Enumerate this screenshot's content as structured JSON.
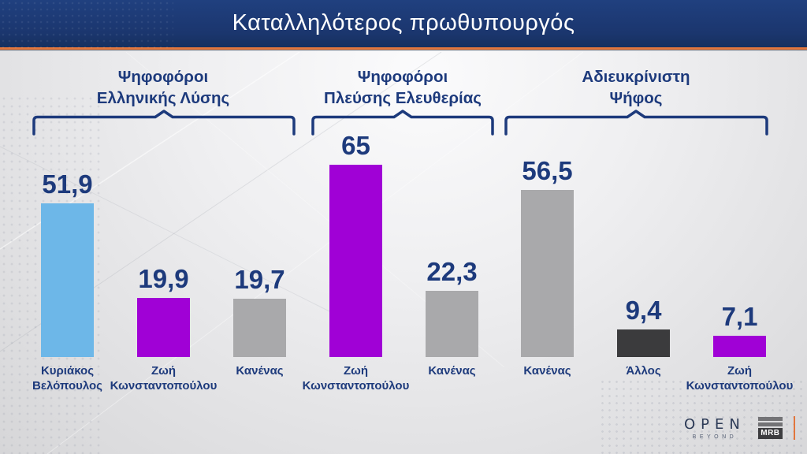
{
  "header": {
    "title": "Καταλληλότερος πρωθυπουργός"
  },
  "colors": {
    "header_bg": "#1b366e",
    "accent_orange": "#e2763c",
    "text_navy": "#1d3a7c",
    "bar_blue": "#6db7e8",
    "bar_purple": "#a001d6",
    "bar_gray": "#a9a9ab",
    "bar_dark": "#3b3b3d"
  },
  "chart_data": {
    "type": "bar",
    "title": "Καταλληλότερος πρωθυπουργός",
    "unit": "percent",
    "ylim": [
      0,
      70
    ],
    "grid": false,
    "legend": "none",
    "groups": [
      {
        "title_line1": "Ψηφοφόροι",
        "title_line2": "Ελληνικής Λύσης",
        "bars": [
          {
            "label_line1": "Κυριάκος",
            "label_line2": "Βελόπουλος",
            "value": 51.9,
            "display": "51,9",
            "color": "blue"
          },
          {
            "label_line1": "Ζωή",
            "label_line2": "Κωνσταντοπούλου",
            "value": 19.9,
            "display": "19,9",
            "color": "purple"
          },
          {
            "label_line1": "Κανένας",
            "label_line2": "",
            "value": 19.7,
            "display": "19,7",
            "color": "gray"
          }
        ]
      },
      {
        "title_line1": "Ψηφοφόροι",
        "title_line2": "Πλεύσης Ελευθερίας",
        "bars": [
          {
            "label_line1": "Ζωή",
            "label_line2": "Κωνσταντοπούλου",
            "value": 65,
            "display": "65",
            "color": "purple"
          },
          {
            "label_line1": "Κανένας",
            "label_line2": "",
            "value": 22.3,
            "display": "22,3",
            "color": "gray"
          }
        ]
      },
      {
        "title_line1": "Αδιευκρίνιστη",
        "title_line2": "Ψήφος",
        "bars": [
          {
            "label_line1": "Κανένας",
            "label_line2": "",
            "value": 56.5,
            "display": "56,5",
            "color": "gray"
          },
          {
            "label_line1": "Άλλος",
            "label_line2": "",
            "value": 9.4,
            "display": "9,4",
            "color": "dark"
          },
          {
            "label_line1": "Ζωή",
            "label_line2": "Κωνσταντοπούλου",
            "value": 7.1,
            "display": "7,1",
            "color": "purple"
          }
        ]
      }
    ]
  },
  "footer": {
    "open_label": "OPEN",
    "open_sub": "BEYOND",
    "mrb_label": "MRB"
  }
}
